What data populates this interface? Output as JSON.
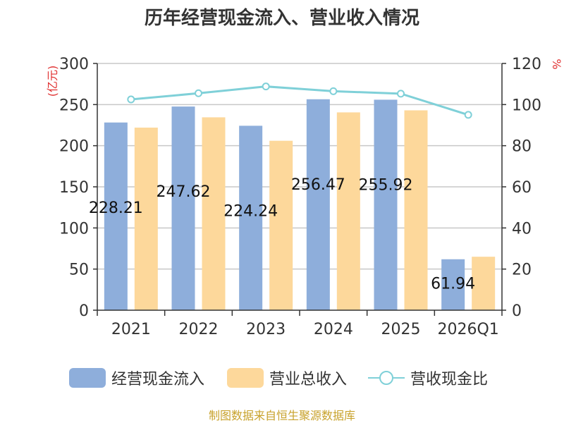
{
  "footer": {
    "source": "制图数据来自恒生聚源数据库"
  },
  "legend_items": [
    {
      "label": "经营现金流入",
      "color": "#8eaedb"
    },
    {
      "label": "营业总收入",
      "color": "#fdd89b"
    },
    {
      "label": "营收现金比",
      "color": "#7fd0d8"
    }
  ],
  "chart_data": {
    "type": "bar",
    "title": "历年经营现金流入、营业收入情况",
    "ylabel": "(亿元)",
    "y2label": "%",
    "categories": [
      "2021",
      "2022",
      "2023",
      "2024",
      "2025",
      "2026Q1"
    ],
    "ylim": [
      0,
      300
    ],
    "yticks": [
      0,
      50,
      100,
      150,
      200,
      250,
      300
    ],
    "y2lim": [
      0,
      120
    ],
    "y2ticks": [
      0,
      20,
      40,
      60,
      80,
      100,
      120
    ],
    "grid": true,
    "legend_position": "bottom",
    "series": [
      {
        "name": "经营现金流入",
        "type": "bar",
        "axis": "left",
        "color": "#8eaedb",
        "values": [
          228.21,
          247.62,
          224.24,
          256.47,
          255.92,
          61.94
        ],
        "labels": [
          "228.21",
          "247.62",
          "224.24",
          "256.47",
          "255.92",
          "61.94"
        ]
      },
      {
        "name": "营业总收入",
        "type": "bar",
        "axis": "left",
        "color": "#fdd89b",
        "values": [
          222,
          234.5,
          206,
          240.5,
          243,
          65
        ]
      },
      {
        "name": "营收现金比",
        "type": "line",
        "axis": "right",
        "color": "#7fd0d8",
        "values": [
          102.5,
          105.5,
          108.8,
          106.5,
          105.3,
          95
        ]
      }
    ]
  }
}
